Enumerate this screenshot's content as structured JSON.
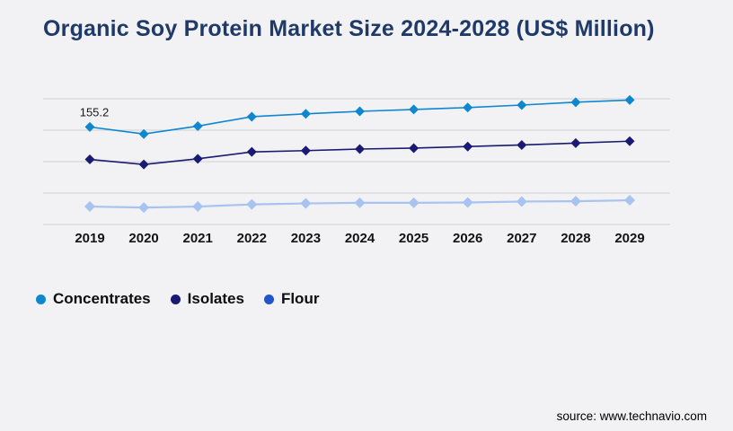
{
  "page": {
    "background_color": "#f2f2f4",
    "title_color": "#1f3a68",
    "gridline_color": "#d7d7da",
    "axis_label_color": "#141414",
    "annotation_color": "#1a1a1a"
  },
  "header": {
    "title": "Organic Soy Protein Market Size 2024-2028 (US$ Million)"
  },
  "source": {
    "label": "source: www.technavio.com"
  },
  "chart_data": {
    "type": "line",
    "title": "Organic Soy Protein Market Size 2024-2028 (US$ Million)",
    "x": [
      2019,
      2020,
      2021,
      2022,
      2023,
      2024,
      2025,
      2026,
      2027,
      2028,
      2029
    ],
    "series": [
      {
        "name": "Concentrates",
        "color": "#0f87cf",
        "legend_color": "#0f87cf",
        "values": [
          155.2,
          144.0,
          156.5,
          171.5,
          176.0,
          180.0,
          183.0,
          186.0,
          190.0,
          194.5,
          198.0
        ]
      },
      {
        "name": "Isolates",
        "color": "#1a1a72",
        "legend_color": "#1a1a72",
        "values": [
          103.5,
          95.5,
          104.5,
          115.5,
          117.5,
          120.0,
          121.5,
          124.0,
          126.5,
          129.5,
          132.5
        ]
      },
      {
        "name": "Flour",
        "color": "#a8c3f0",
        "legend_color": "#2355c8",
        "values": [
          28.5,
          27.0,
          28.5,
          32.0,
          33.5,
          34.5,
          34.5,
          35.0,
          36.5,
          37.0,
          38.5
        ]
      }
    ],
    "annotations": [
      {
        "series": "Concentrates",
        "x": 2019,
        "label": "155.2"
      }
    ],
    "ylim": [
      0,
      200
    ],
    "gridlines": [
      0,
      50,
      100,
      150,
      200
    ],
    "grid": true,
    "y_axis_labels_visible": false,
    "legend_position": "bottom-left",
    "marker": "diamond",
    "xlabel": "",
    "ylabel": ""
  }
}
